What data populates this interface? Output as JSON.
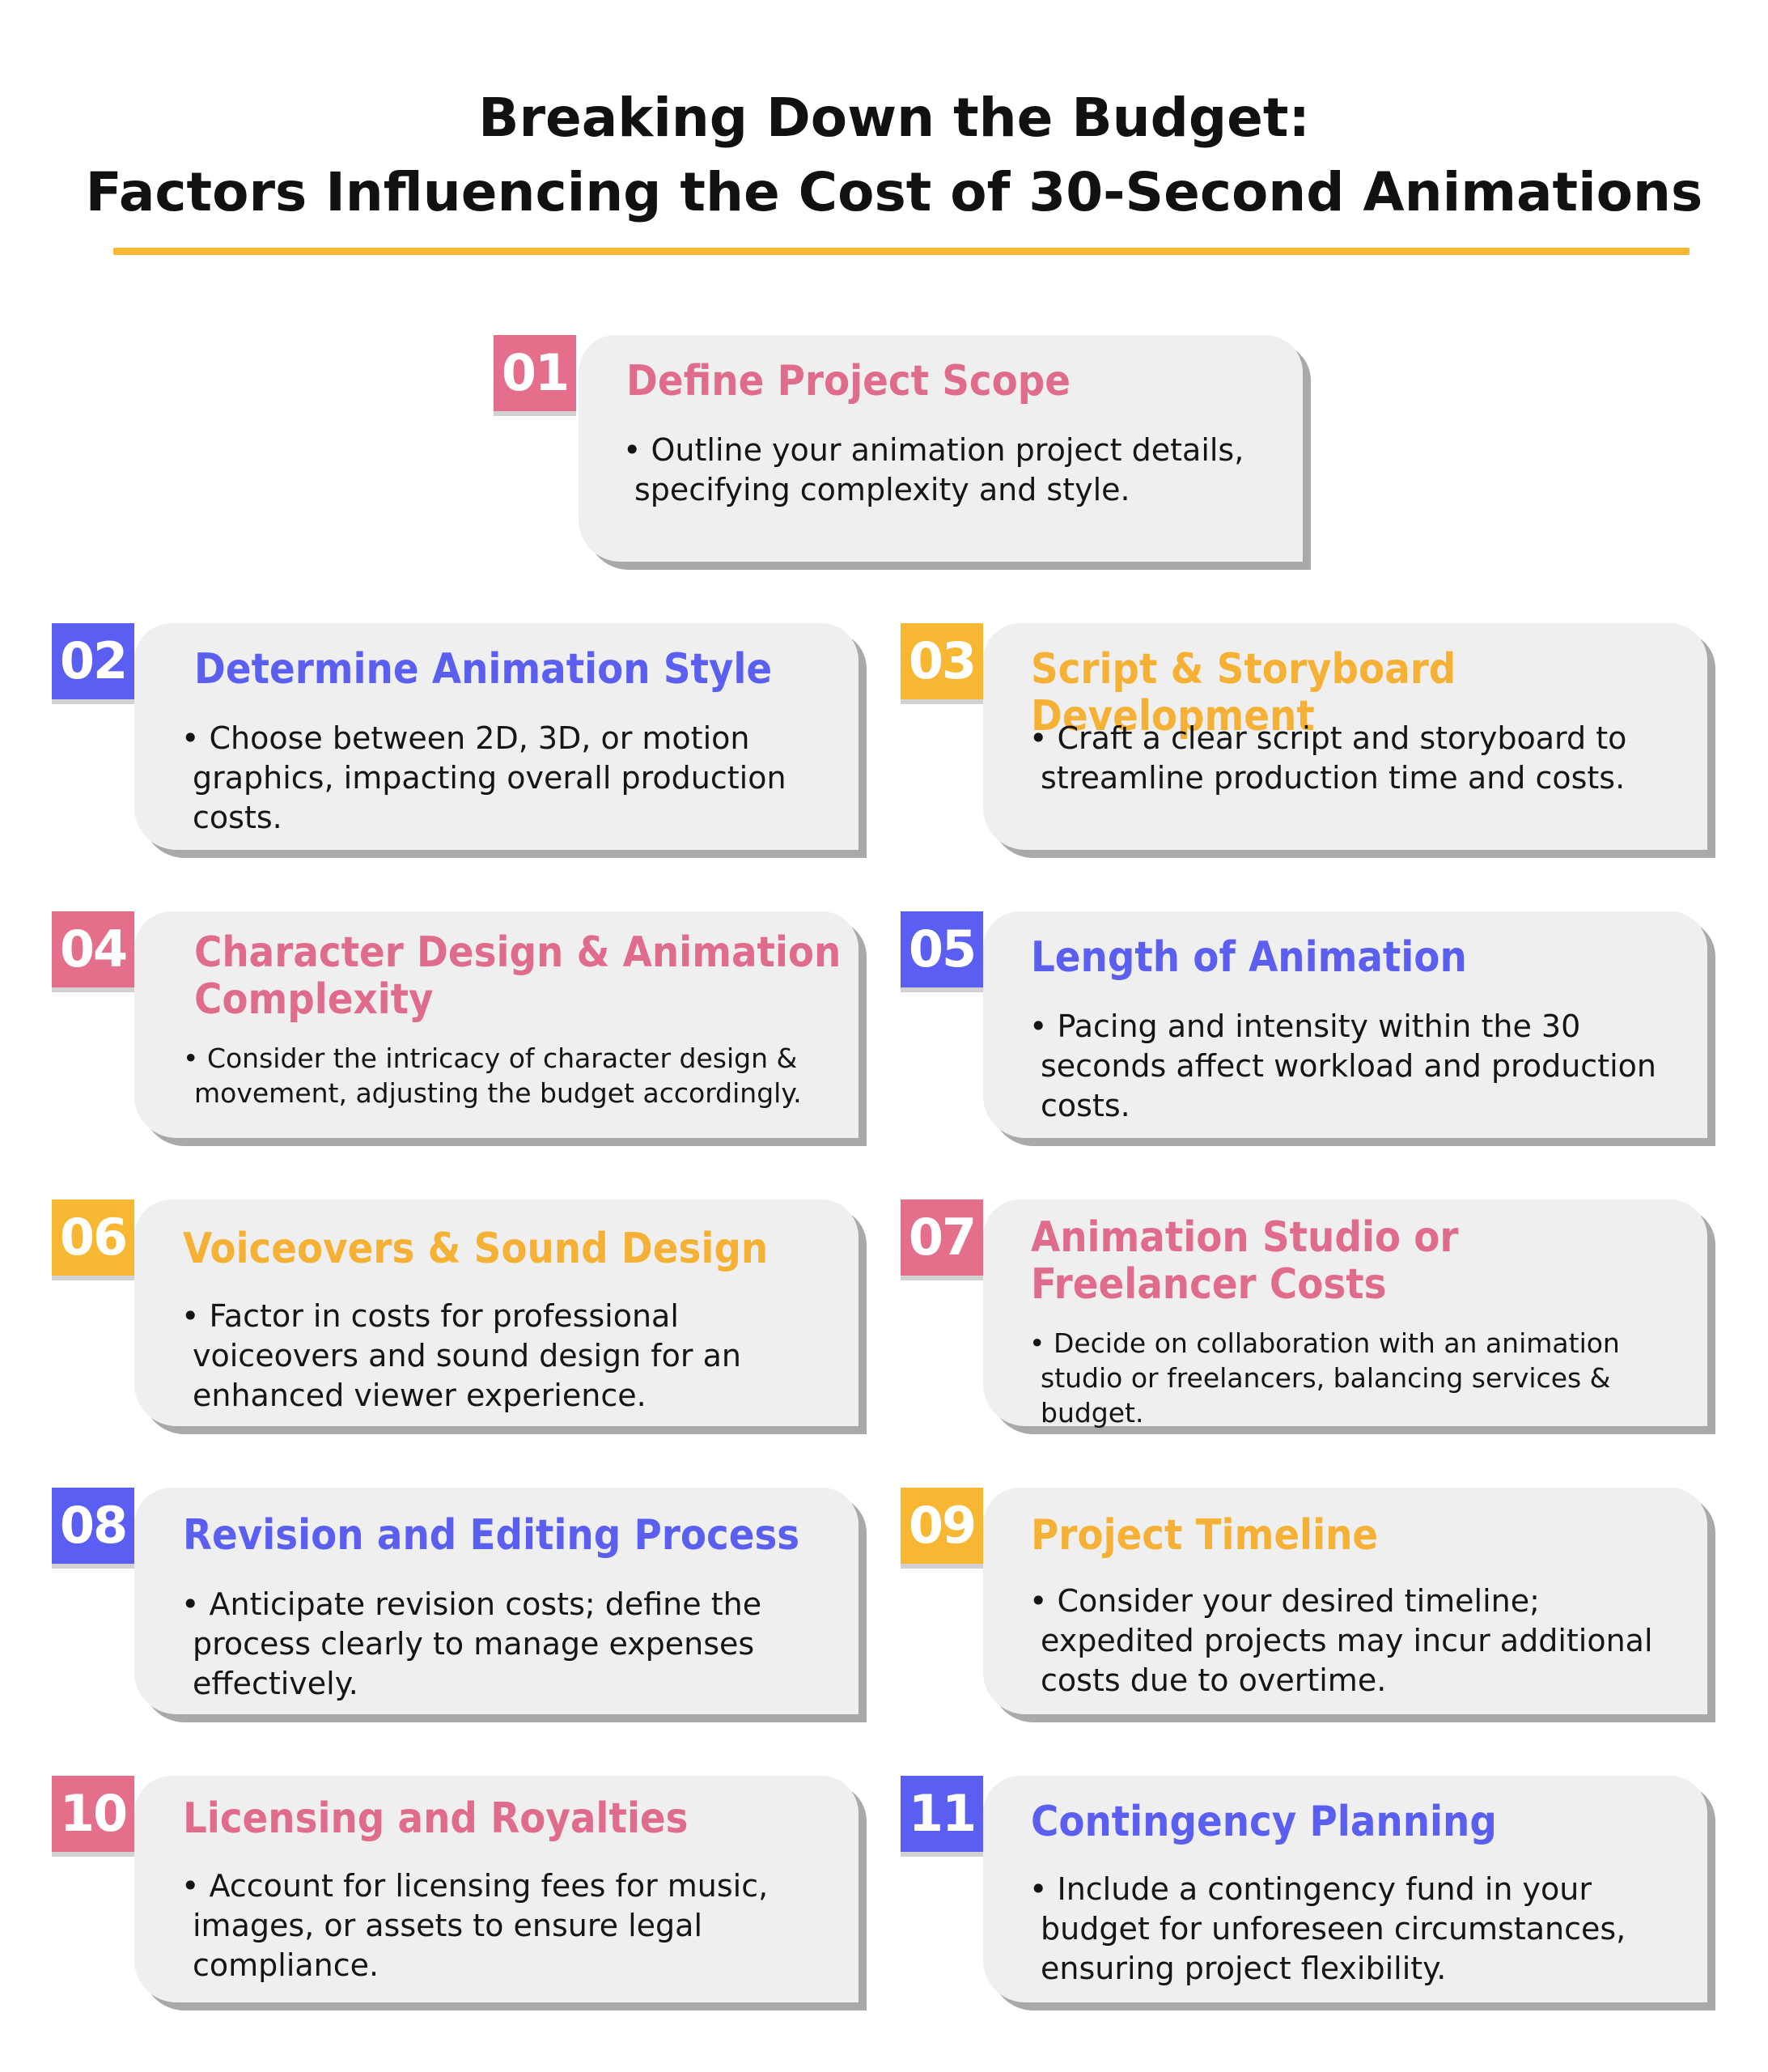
{
  "header": {
    "title_line1": "Breaking Down the Budget:",
    "title_line2": "Factors Influencing the Cost of 30-Second Animations"
  },
  "colors": {
    "pink": "#e56e8b",
    "blue": "#5a5ef2",
    "amber": "#f7b733",
    "card": "#efefef",
    "card_shadow": "#a9a9ab"
  },
  "factors": [
    {
      "number": "01",
      "title": "Define Project Scope",
      "description": "• Outline your animation project details, specifying complexity and style."
    },
    {
      "number": "02",
      "title": "Determine Animation Style",
      "description": "• Choose between 2D, 3D, or motion graphics, impacting overall production costs."
    },
    {
      "number": "03",
      "title": "Script & Storyboard Development",
      "description": "• Craft a clear script and storyboard to streamline production time and costs."
    },
    {
      "number": "04",
      "title": "Character Design & Animation Complexity",
      "description": "• Consider the intricacy of character design & movement, adjusting the budget accordingly."
    },
    {
      "number": "05",
      "title": "Length of Animation",
      "description": "• Pacing and intensity within the 30 seconds affect workload and production costs."
    },
    {
      "number": "06",
      "title": "Voiceovers & Sound Design",
      "description": "• Factor in costs for professional voiceovers and sound design for an enhanced viewer experience."
    },
    {
      "number": "07",
      "title": "Animation Studio or Freelancer Costs",
      "description": "• Decide on collaboration with an animation studio or freelancers, balancing services & budget."
    },
    {
      "number": "08",
      "title": "Revision and Editing Process",
      "description": "• Anticipate revision costs; define the process clearly to manage expenses effectively."
    },
    {
      "number": "09",
      "title": "Project Timeline",
      "description": "• Consider your desired timeline; expedited projects may incur additional costs due to overtime."
    },
    {
      "number": "10",
      "title": "Licensing and Royalties",
      "description": "• Account for licensing fees for music, images, or assets to ensure legal compliance."
    },
    {
      "number": "11",
      "title": "Contingency Planning",
      "description": "• Include a contingency fund in your budget for unforeseen circumstances, ensuring project flexibility."
    }
  ]
}
